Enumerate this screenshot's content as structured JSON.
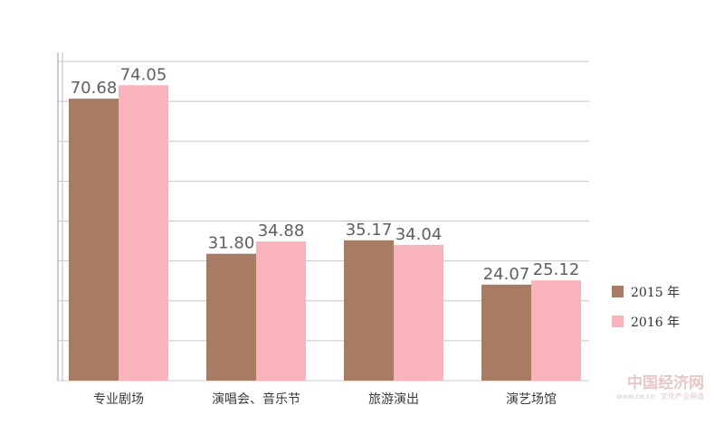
{
  "chart_data": {
    "type": "bar",
    "categories": [
      "专业剧场",
      "演唱会、音乐节",
      "旅游演出",
      "演艺场馆"
    ],
    "series": [
      {
        "name": "2015 年",
        "values": [
          70.68,
          31.8,
          35.17,
          24.07
        ],
        "value_labels": [
          "70.68",
          "31.80",
          "35.17",
          "24.07"
        ],
        "color": "#a87c64"
      },
      {
        "name": "2016 年",
        "values": [
          74.05,
          34.88,
          34.04,
          25.12
        ],
        "value_labels": [
          "74.05",
          "34.88",
          "34.04",
          "25.12"
        ],
        "color": "#f9b4bb"
      }
    ],
    "ylim": [
      0,
      80
    ],
    "grid": true,
    "legend": "right"
  },
  "watermark": {
    "main": "中国经济网",
    "url": "www.ce.cn",
    "sub": "文化产业频道"
  }
}
